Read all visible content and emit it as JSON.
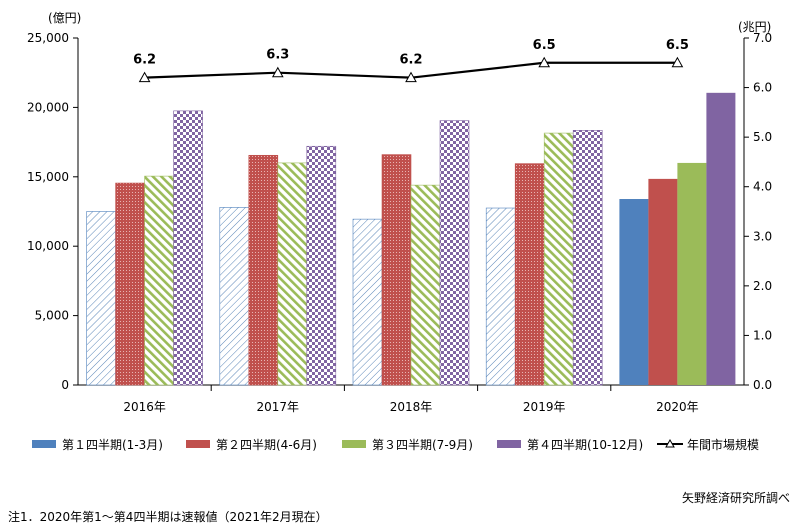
{
  "chart_data": {
    "type": "bar",
    "categories": [
      "2016年",
      "2017年",
      "2018年",
      "2019年",
      "2020年"
    ],
    "y_left": {
      "unit": "(億円)",
      "range": [
        0,
        25000
      ],
      "ticks": [
        "0",
        "5,000",
        "10,000",
        "15,000",
        "20,000",
        "25,000"
      ]
    },
    "y_right": {
      "unit": "(兆円)",
      "range": [
        0,
        7.0
      ],
      "ticks": [
        "0.0",
        "1.0",
        "2.0",
        "3.0",
        "4.0",
        "5.0",
        "6.0",
        "7.0"
      ]
    },
    "series": [
      {
        "name": "第１四半期(1-3月)",
        "color": "#4f81bd",
        "values": [
          12500,
          12800,
          11950,
          12750,
          13400
        ]
      },
      {
        "name": "第２四半期(4-6月)",
        "color": "#c0504d",
        "values": [
          14550,
          16550,
          16600,
          15950,
          14850
        ]
      },
      {
        "name": "第３四半期(7-9月)",
        "color": "#9bbb59",
        "values": [
          15050,
          16000,
          14400,
          18150,
          16000
        ]
      },
      {
        "name": "第４四半期(10-12月)",
        "color": "#8064a2",
        "values": [
          19750,
          17200,
          19050,
          18350,
          21050
        ]
      }
    ],
    "line_series": {
      "name": "年間市場規模",
      "axis": "right",
      "values": [
        6.2,
        6.3,
        6.2,
        6.5,
        6.5
      ],
      "labels": [
        "6.2",
        "6.3",
        "6.2",
        "6.5",
        "6.5"
      ]
    },
    "pattern_note": "2016–2019 bars hatched, 2020 bars solid",
    "legend_position": "bottom",
    "grid": false
  },
  "footnote": "注1．2020年第1～第4四半期は速報値（2021年2月現在）",
  "source": "矢野経済研究所調べ"
}
